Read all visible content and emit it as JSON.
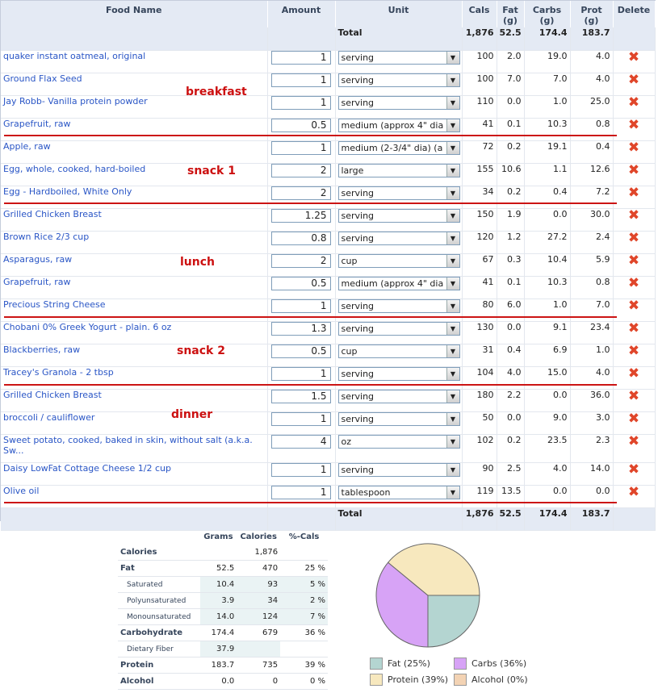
{
  "columns": {
    "food_name": "Food Name",
    "amount": "Amount",
    "unit": "Unit",
    "cals": "Cals",
    "fat": "Fat (g)",
    "carbs": "Carbs (g)",
    "prot": "Prot (g)",
    "delete": "Delete"
  },
  "totals": {
    "label": "Total",
    "cals": "1,876",
    "fat": "52.5",
    "carbs": "174.4",
    "prot": "183.7"
  },
  "rows": [
    {
      "food": "quaker instant oatmeal, original",
      "amount": "1",
      "unit": "serving",
      "cals": "100",
      "fat": "2.0",
      "carbs": "19.0",
      "prot": "4.0"
    },
    {
      "food": "Ground Flax Seed",
      "amount": "1",
      "unit": "serving",
      "cals": "100",
      "fat": "7.0",
      "carbs": "7.0",
      "prot": "4.0"
    },
    {
      "food": "Jay Robb- Vanilla protein powder",
      "amount": "1",
      "unit": "serving",
      "cals": "110",
      "fat": "0.0",
      "carbs": "1.0",
      "prot": "25.0"
    },
    {
      "food": "Grapefruit, raw",
      "amount": "0.5",
      "unit": "medium (approx 4\" dia",
      "cals": "41",
      "fat": "0.1",
      "carbs": "10.3",
      "prot": "0.8"
    },
    {
      "food": "Apple, raw",
      "amount": "1",
      "unit": "medium (2-3/4\" dia) (a",
      "cals": "72",
      "fat": "0.2",
      "carbs": "19.1",
      "prot": "0.4"
    },
    {
      "food": "Egg, whole, cooked, hard-boiled",
      "amount": "2",
      "unit": "large",
      "cals": "155",
      "fat": "10.6",
      "carbs": "1.1",
      "prot": "12.6"
    },
    {
      "food": "Egg - Hardboiled, White Only",
      "amount": "2",
      "unit": "serving",
      "cals": "34",
      "fat": "0.2",
      "carbs": "0.4",
      "prot": "7.2"
    },
    {
      "food": "Grilled Chicken Breast",
      "amount": "1.25",
      "unit": "serving",
      "cals": "150",
      "fat": "1.9",
      "carbs": "0.0",
      "prot": "30.0"
    },
    {
      "food": "Brown Rice 2/3 cup",
      "amount": "0.8",
      "unit": "serving",
      "cals": "120",
      "fat": "1.2",
      "carbs": "27.2",
      "prot": "2.4"
    },
    {
      "food": "Asparagus, raw",
      "amount": "2",
      "unit": "cup",
      "cals": "67",
      "fat": "0.3",
      "carbs": "10.4",
      "prot": "5.9"
    },
    {
      "food": "Grapefruit, raw",
      "amount": "0.5",
      "unit": "medium (approx 4\" dia",
      "cals": "41",
      "fat": "0.1",
      "carbs": "10.3",
      "prot": "0.8"
    },
    {
      "food": "Precious String Cheese",
      "amount": "1",
      "unit": "serving",
      "cals": "80",
      "fat": "6.0",
      "carbs": "1.0",
      "prot": "7.0"
    },
    {
      "food": "Chobani 0% Greek Yogurt - plain. 6 oz",
      "amount": "1.3",
      "unit": "serving",
      "cals": "130",
      "fat": "0.0",
      "carbs": "9.1",
      "prot": "23.4"
    },
    {
      "food": "Blackberries, raw",
      "amount": "0.5",
      "unit": "cup",
      "cals": "31",
      "fat": "0.4",
      "carbs": "6.9",
      "prot": "1.0"
    },
    {
      "food": "Tracey's Granola - 2 tbsp",
      "amount": "1",
      "unit": "serving",
      "cals": "104",
      "fat": "4.0",
      "carbs": "15.0",
      "prot": "4.0"
    },
    {
      "food": "Grilled Chicken Breast",
      "amount": "1.5",
      "unit": "serving",
      "cals": "180",
      "fat": "2.2",
      "carbs": "0.0",
      "prot": "36.0"
    },
    {
      "food": "broccoli / cauliflower",
      "amount": "1",
      "unit": "serving",
      "cals": "50",
      "fat": "0.0",
      "carbs": "9.0",
      "prot": "3.0"
    },
    {
      "food": "Sweet potato, cooked, baked in skin, without salt (a.k.a. Sw...",
      "amount": "4",
      "unit": "oz",
      "cals": "102",
      "fat": "0.2",
      "carbs": "23.5",
      "prot": "2.3"
    },
    {
      "food": "Daisy LowFat Cottage Cheese 1/2 cup",
      "amount": "1",
      "unit": "serving",
      "cals": "90",
      "fat": "2.5",
      "carbs": "4.0",
      "prot": "14.0"
    },
    {
      "food": "Olive oil",
      "amount": "1",
      "unit": "tablespoon",
      "cals": "119",
      "fat": "13.5",
      "carbs": "0.0",
      "prot": "0.0"
    }
  ],
  "meal_labels": {
    "breakfast": "breakfast",
    "snack1": "snack 1",
    "lunch": "lunch",
    "snack2": "snack 2",
    "dinner": "dinner"
  },
  "summary": {
    "headers": {
      "grams": "Grams",
      "calories": "Calories",
      "pct": "%-Cals"
    },
    "calories": {
      "label": "Calories",
      "calories": "1,876"
    },
    "fat": {
      "label": "Fat",
      "grams": "52.5",
      "calories": "470",
      "pct": "25 %"
    },
    "saturated": {
      "label": "Saturated",
      "grams": "10.4",
      "calories": "93",
      "pct": "5 %"
    },
    "polyunsaturated": {
      "label": "Polyunsaturated",
      "grams": "3.9",
      "calories": "34",
      "pct": "2 %"
    },
    "monounsaturated": {
      "label": "Monounsaturated",
      "grams": "14.0",
      "calories": "124",
      "pct": "7 %"
    },
    "carbohydrate": {
      "label": "Carbohydrate",
      "grams": "174.4",
      "calories": "679",
      "pct": "36 %"
    },
    "fiber": {
      "label": "Dietary Fiber",
      "grams": "37.9"
    },
    "protein": {
      "label": "Protein",
      "grams": "183.7",
      "calories": "735",
      "pct": "39 %"
    },
    "alcohol": {
      "label": "Alcohol",
      "grams": "0.0",
      "calories": "0",
      "pct": "0 %"
    }
  },
  "chart_data": {
    "type": "pie",
    "categories": [
      "Fat",
      "Carbs",
      "Protein",
      "Alcohol"
    ],
    "values": [
      25,
      36,
      39,
      0
    ],
    "colors": [
      "#b4d5d1",
      "#d7a3f6",
      "#f7e8be",
      "#f3d3b4"
    ],
    "legend": [
      "Fat (25%)",
      "Carbs (36%)",
      "Protein (39%)",
      "Alcohol (0%)"
    ]
  }
}
